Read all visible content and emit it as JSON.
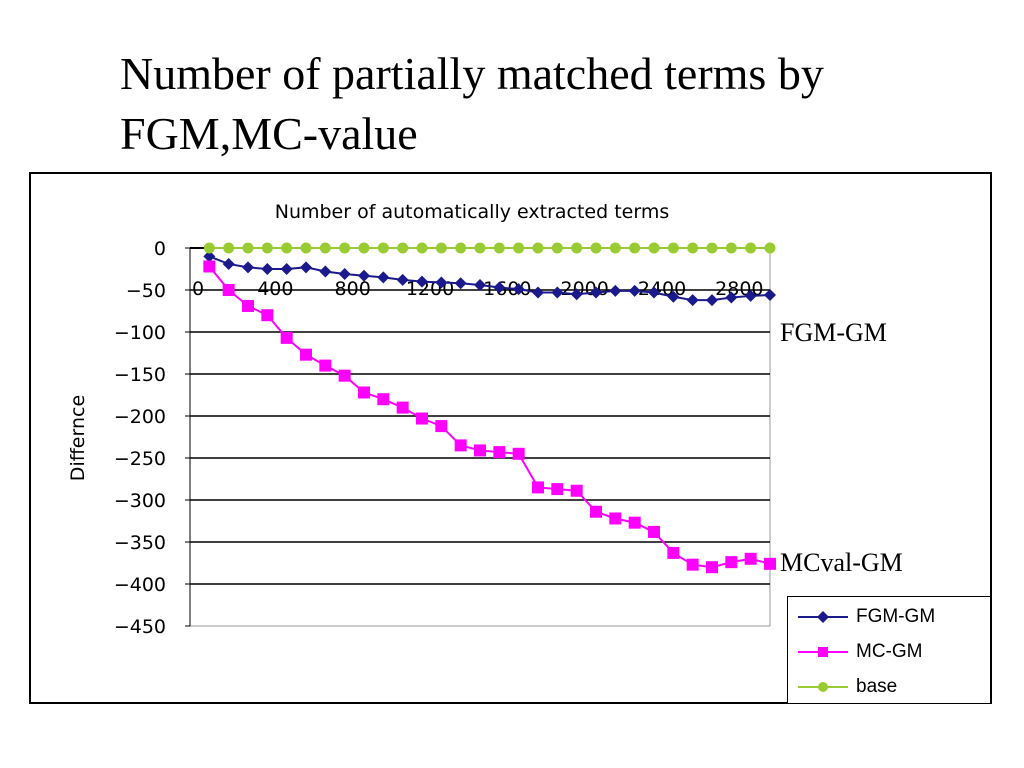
{
  "slide": {
    "title": "Number of partially matched terms by FGM,MC-value"
  },
  "annotations": {
    "fgm_label": "FGM-GM",
    "mc_label": "MCval-GM"
  },
  "chart_data": {
    "type": "line",
    "title": "Number of automatically extracted terms",
    "xlabel": "",
    "ylabel": "Differnce",
    "xlim": [
      0,
      3000
    ],
    "ylim": [
      -450,
      0
    ],
    "x_ticks": [
      0,
      400,
      800,
      1200,
      1600,
      2000,
      2400,
      2800
    ],
    "y_ticks": [
      0,
      -50,
      -100,
      -150,
      -200,
      -250,
      -300,
      -350,
      -400,
      -450
    ],
    "grid": true,
    "legend_position": "bottom-right",
    "x": [
      100,
      200,
      300,
      400,
      500,
      600,
      700,
      800,
      900,
      1000,
      1100,
      1200,
      1300,
      1400,
      1500,
      1600,
      1700,
      1800,
      1900,
      2000,
      2100,
      2200,
      2300,
      2400,
      2500,
      2600,
      2700,
      2800,
      2900,
      3000
    ],
    "series": [
      {
        "name": "FGM-GM",
        "color": "#1a1a8c",
        "marker": "diamond",
        "values": [
          -10,
          -19,
          -23,
          -25,
          -25,
          -23,
          -28,
          -31,
          -33,
          -35,
          -38,
          -40,
          -41,
          -42,
          -44,
          -47,
          -49,
          -53,
          -53,
          -55,
          -53,
          -51,
          -51,
          -53,
          -58,
          -62,
          -62,
          -59,
          -57,
          -56
        ]
      },
      {
        "name": "MC-GM",
        "color": "#ff00ff",
        "marker": "square",
        "values": [
          -22,
          -50,
          -69,
          -80,
          -107,
          -127,
          -140,
          -152,
          -172,
          -180,
          -190,
          -203,
          -212,
          -235,
          -241,
          -243,
          -245,
          -285,
          -287,
          -289,
          -314,
          -322,
          -327,
          -338,
          -363,
          -377,
          -380,
          -374,
          -370,
          -376
        ]
      },
      {
        "name": "base",
        "color": "#99cc33",
        "marker": "circle",
        "values": [
          0,
          0,
          0,
          0,
          0,
          0,
          0,
          0,
          0,
          0,
          0,
          0,
          0,
          0,
          0,
          0,
          0,
          0,
          0,
          0,
          0,
          0,
          0,
          0,
          0,
          0,
          0,
          0,
          0,
          0
        ]
      }
    ]
  }
}
